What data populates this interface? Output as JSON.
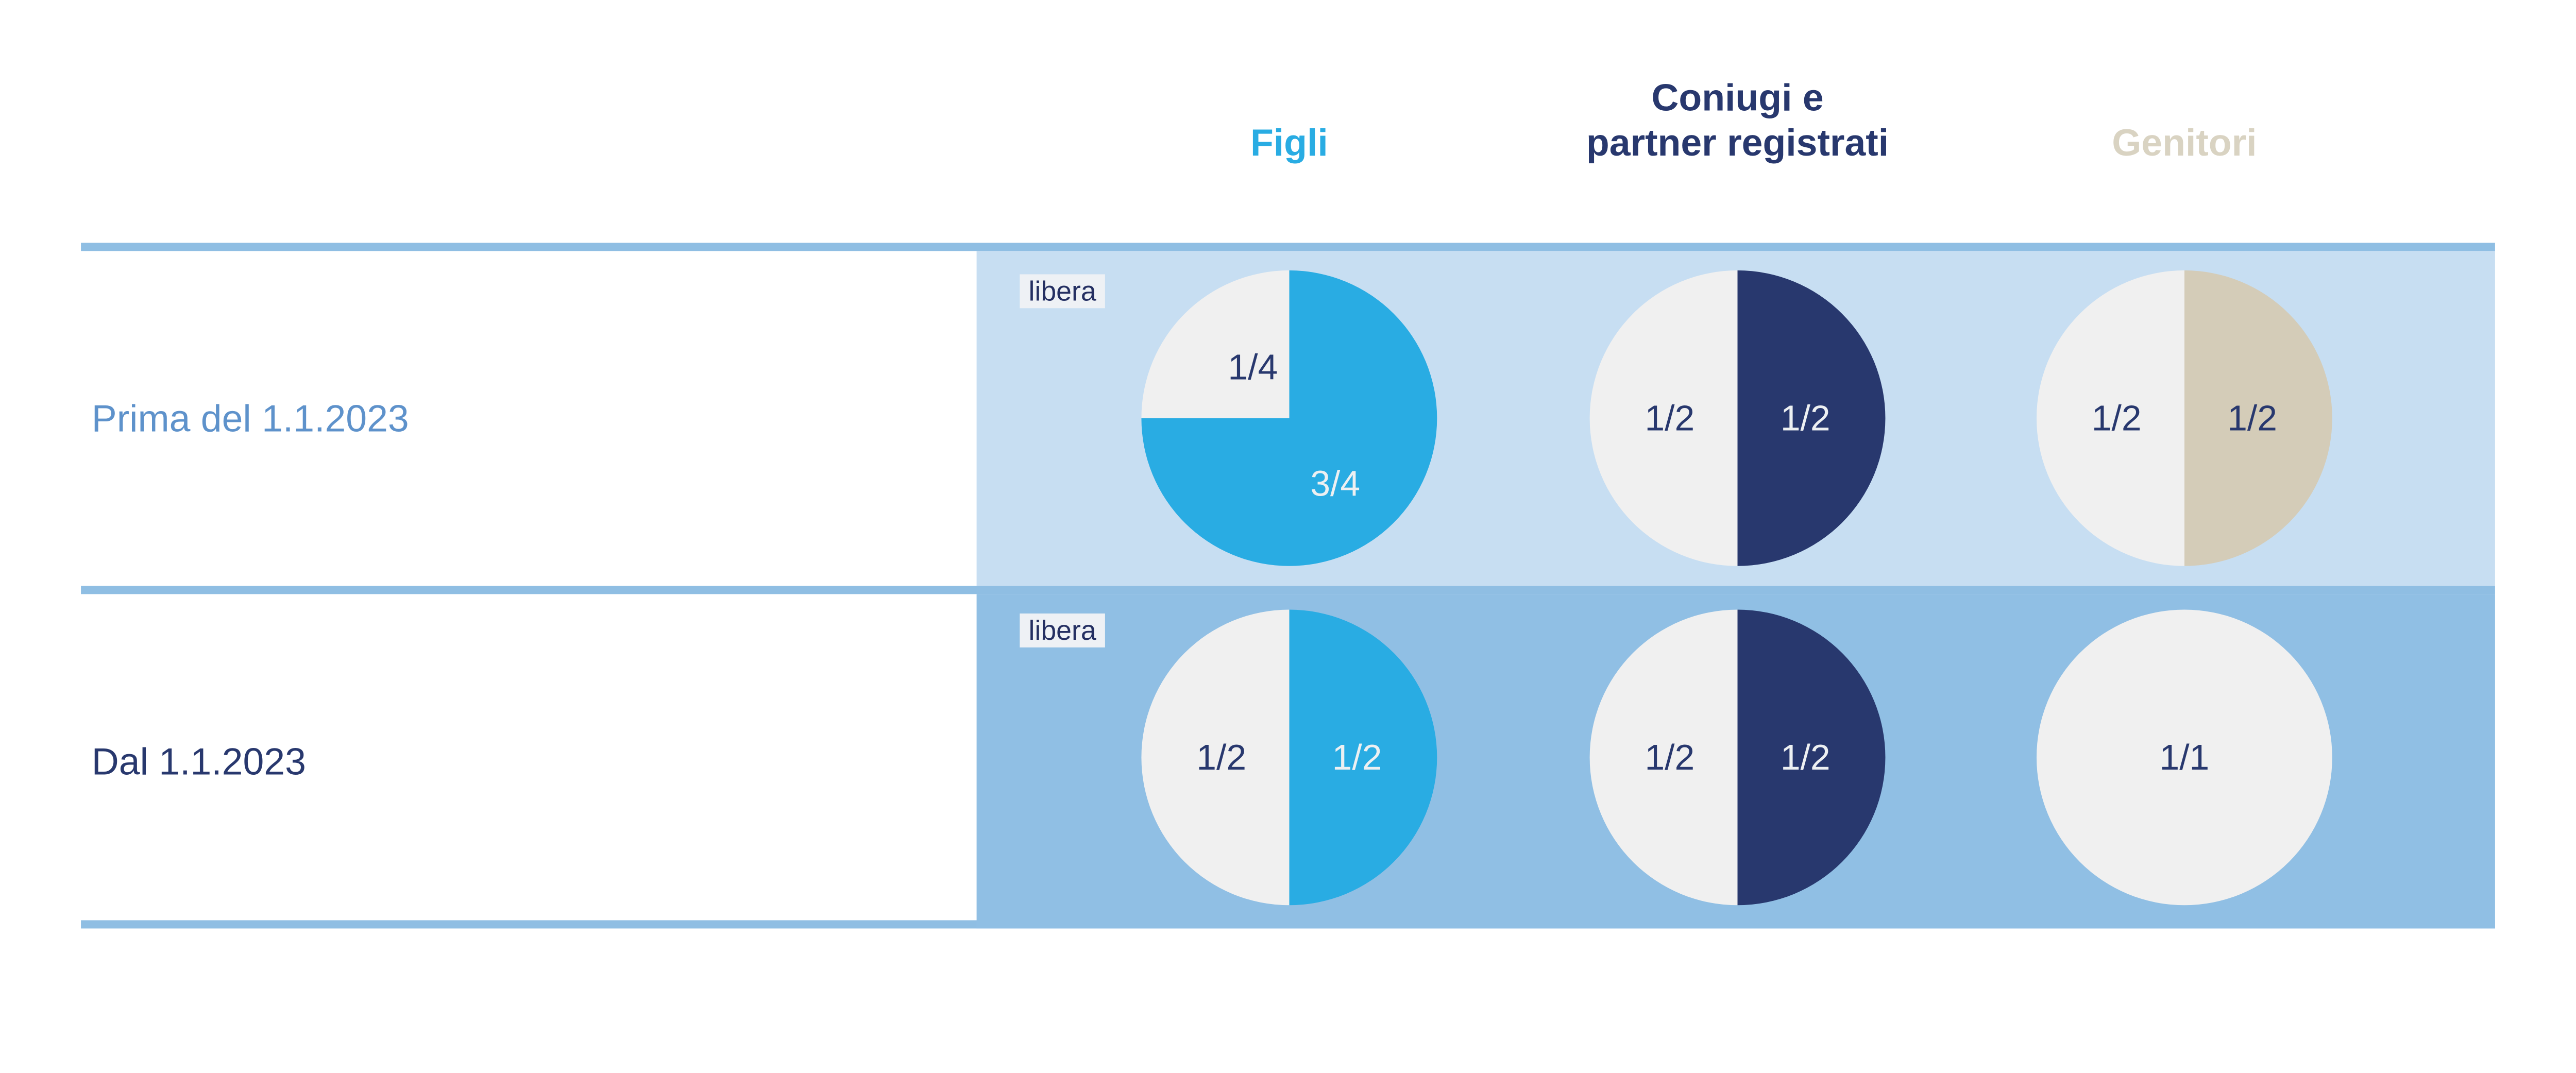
{
  "palette": {
    "bar_blue": "#8FBEE3",
    "row1_bg": "#C7DEF2",
    "row2_bg": "#90BFE4",
    "cyan": "#29ACE3",
    "navy": "#28386E",
    "beige": "#D4CCB8",
    "beige_header": "#D9D3C2",
    "offwhite": "#F0F0F0",
    "badge_bg": "#EEF1F5",
    "badge_text": "#242F62",
    "row1_label": "#5E92CB",
    "light_text": "#EDF0F2"
  },
  "header": {
    "columns": [
      {
        "id": "figli",
        "lines": [
          "Figli"
        ],
        "color": "#29ACE3"
      },
      {
        "id": "coniugi",
        "lines": [
          "Coniugi e",
          "partner registrati"
        ],
        "color": "#28386E"
      },
      {
        "id": "genitori",
        "lines": [
          "Genitori"
        ],
        "color": "#D9D3C2"
      }
    ]
  },
  "rows": [
    {
      "label": "Prima del 1.1.2023",
      "badge": "libera",
      "pies": [
        {
          "column": "Figli",
          "segments": [
            {
              "label": "1/4",
              "value": 0.25,
              "color_key": "offwhite"
            },
            {
              "label": "3/4",
              "value": 0.75,
              "color_key": "cyan"
            }
          ]
        },
        {
          "column": "Coniugi e partner registrati",
          "segments": [
            {
              "label": "1/2",
              "value": 0.5,
              "color_key": "offwhite"
            },
            {
              "label": "1/2",
              "value": 0.5,
              "color_key": "navy"
            }
          ]
        },
        {
          "column": "Genitori",
          "segments": [
            {
              "label": "1/2",
              "value": 0.5,
              "color_key": "offwhite"
            },
            {
              "label": "1/2",
              "value": 0.5,
              "color_key": "beige"
            }
          ]
        }
      ]
    },
    {
      "label": "Dal 1.1.2023",
      "badge": "libera",
      "pies": [
        {
          "column": "Figli",
          "segments": [
            {
              "label": "1/2",
              "value": 0.5,
              "color_key": "offwhite"
            },
            {
              "label": "1/2",
              "value": 0.5,
              "color_key": "cyan"
            }
          ]
        },
        {
          "column": "Coniugi e partner registrati",
          "segments": [
            {
              "label": "1/2",
              "value": 0.5,
              "color_key": "offwhite"
            },
            {
              "label": "1/2",
              "value": 0.5,
              "color_key": "navy"
            }
          ]
        },
        {
          "column": "Genitori",
          "segments": [
            {
              "label": "1/1",
              "value": 1.0,
              "color_key": "offwhite"
            }
          ]
        }
      ]
    }
  ],
  "chart_data": [
    {
      "type": "pie",
      "row": "Prima del 1.1.2023",
      "column": "Figli",
      "badge": "libera",
      "slices": [
        {
          "label": "1/4",
          "value": 0.25,
          "color": "#F0F0F0"
        },
        {
          "label": "3/4",
          "value": 0.75,
          "color": "#29ACE3"
        }
      ]
    },
    {
      "type": "pie",
      "row": "Prima del 1.1.2023",
      "column": "Coniugi e partner registrati",
      "slices": [
        {
          "label": "1/2",
          "value": 0.5,
          "color": "#F0F0F0"
        },
        {
          "label": "1/2",
          "value": 0.5,
          "color": "#28386E"
        }
      ]
    },
    {
      "type": "pie",
      "row": "Prima del 1.1.2023",
      "column": "Genitori",
      "slices": [
        {
          "label": "1/2",
          "value": 0.5,
          "color": "#F0F0F0"
        },
        {
          "label": "1/2",
          "value": 0.5,
          "color": "#D4CCB8"
        }
      ]
    },
    {
      "type": "pie",
      "row": "Dal 1.1.2023",
      "column": "Figli",
      "badge": "libera",
      "slices": [
        {
          "label": "1/2",
          "value": 0.5,
          "color": "#F0F0F0"
        },
        {
          "label": "1/2",
          "value": 0.5,
          "color": "#29ACE3"
        }
      ]
    },
    {
      "type": "pie",
      "row": "Dal 1.1.2023",
      "column": "Coniugi e partner registrati",
      "slices": [
        {
          "label": "1/2",
          "value": 0.5,
          "color": "#F0F0F0"
        },
        {
          "label": "1/2",
          "value": 0.5,
          "color": "#28386E"
        }
      ]
    },
    {
      "type": "pie",
      "row": "Dal 1.1.2023",
      "column": "Genitori",
      "slices": [
        {
          "label": "1/1",
          "value": 1.0,
          "color": "#F0F0F0"
        }
      ]
    }
  ]
}
